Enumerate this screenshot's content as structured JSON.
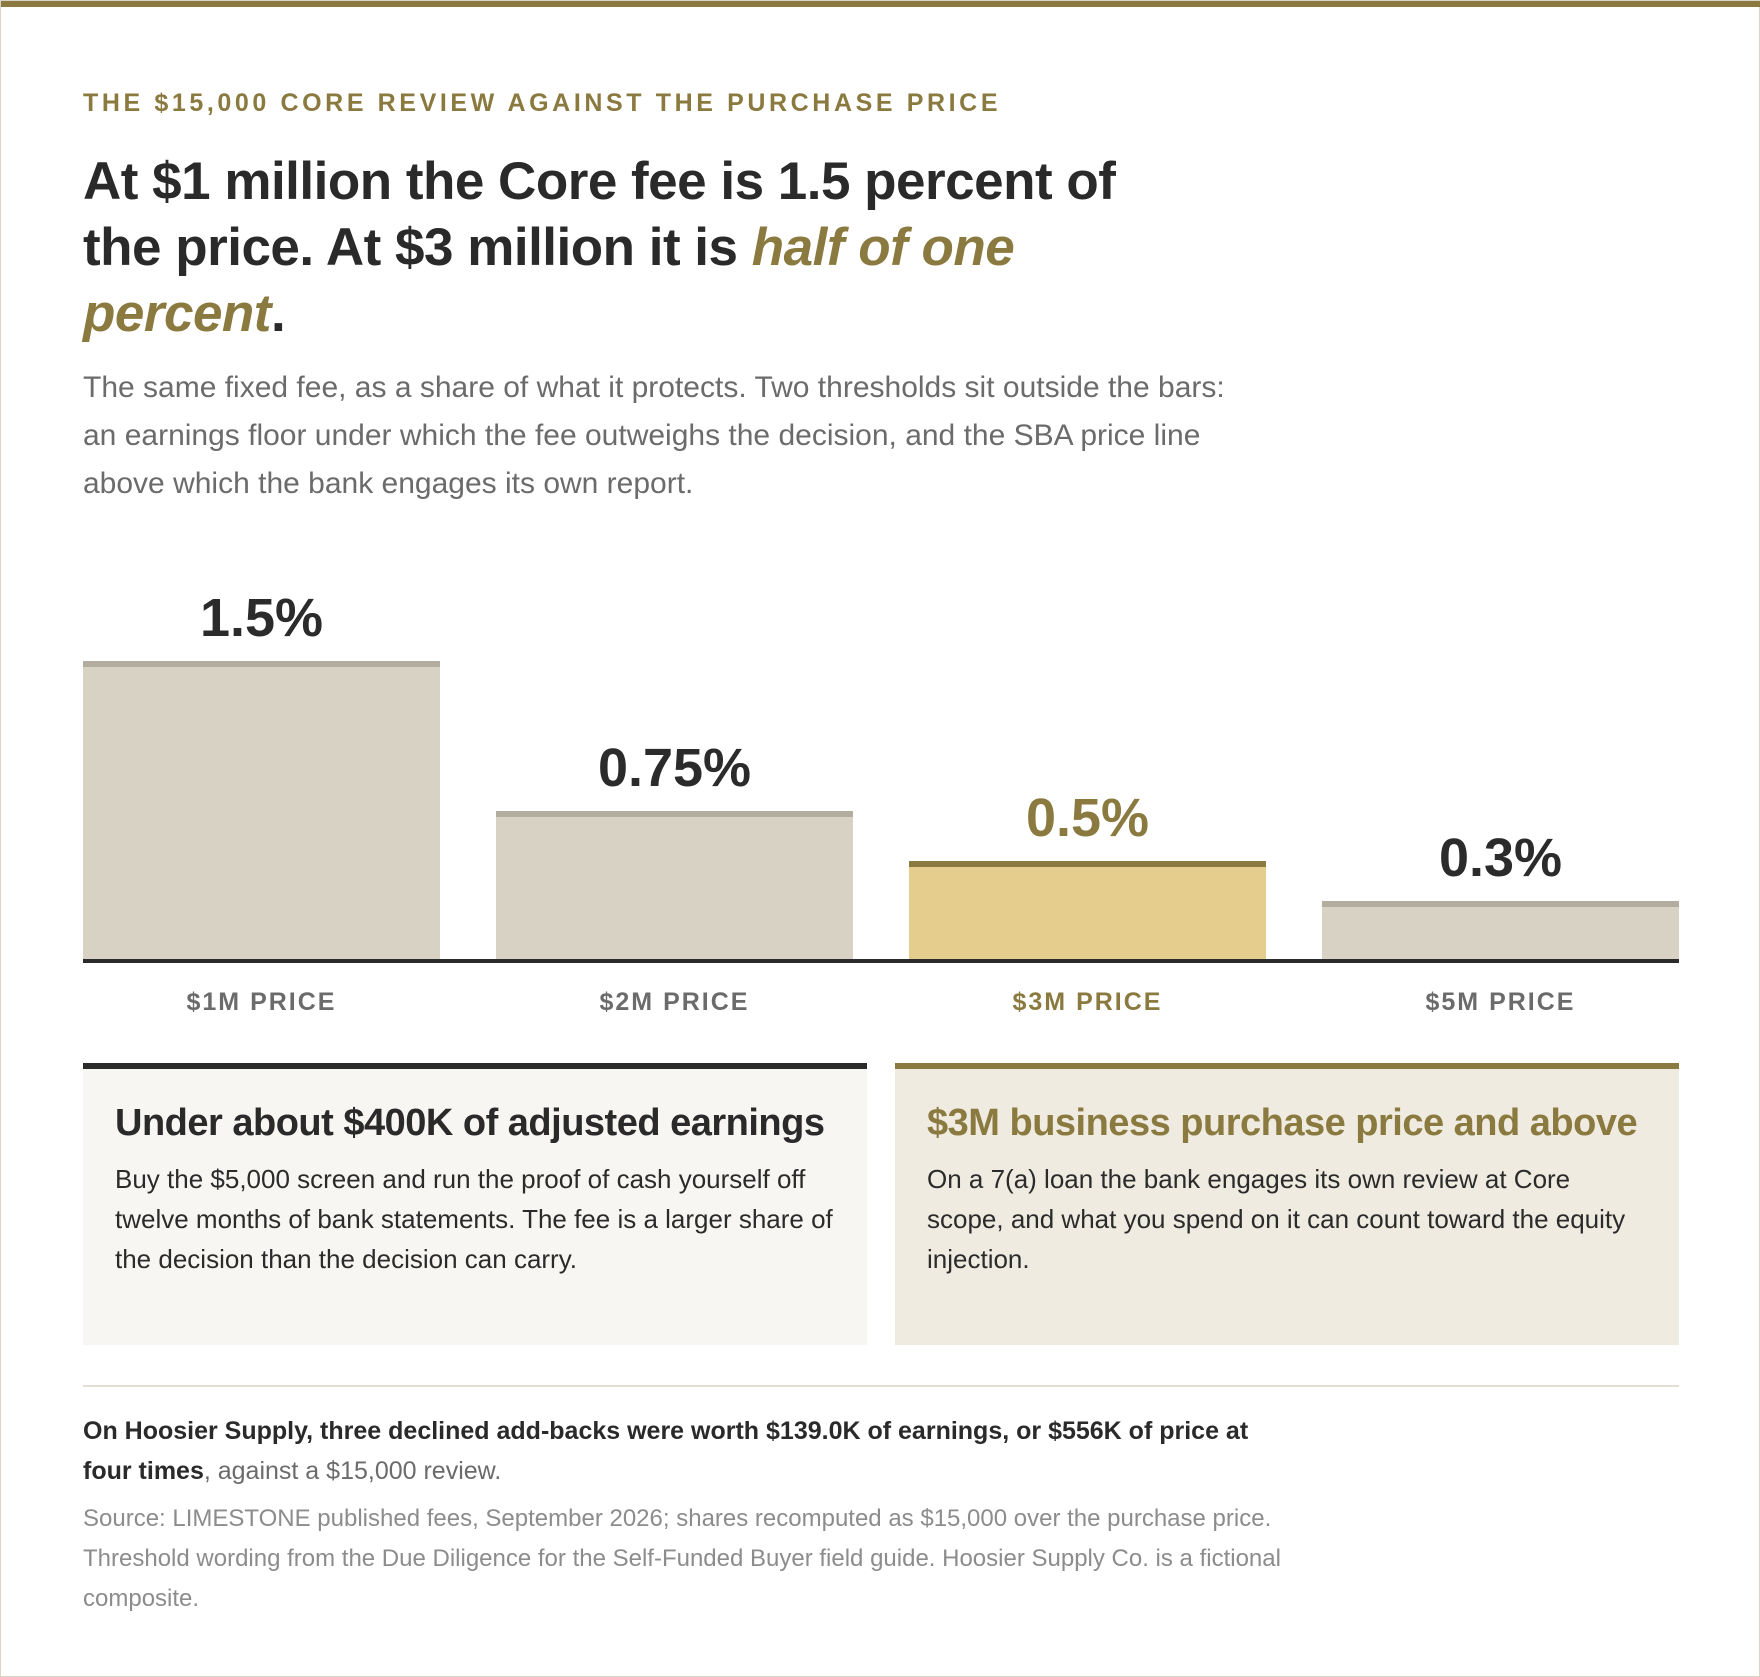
{
  "eyebrow": "THE $15,000 CORE REVIEW AGAINST THE PURCHASE PRICE",
  "headline": {
    "text_before": "At $1 million the Core fee is 1.5 percent of the price. At $3 million it is ",
    "highlight": "half of one percent",
    "text_after": "."
  },
  "dek": "The same fixed fee, as a share of what it protects. Two thresholds sit outside the bars: an earnings floor under which the fee outweighs the decision, and the SBA price line above which the bank engages its own report.",
  "chart_data": {
    "type": "bar",
    "categories": [
      "$1M PRICE",
      "$2M PRICE",
      "$3M PRICE",
      "$5M PRICE"
    ],
    "values": [
      1.5,
      0.75,
      0.5,
      0.3
    ],
    "value_labels": [
      "1.5%",
      "0.75%",
      "0.5%",
      "0.3%"
    ],
    "highlight_index": 2,
    "ylim": [
      0,
      1.5
    ],
    "grid": false,
    "legend": "none",
    "colors": {
      "bar": "#d8d2c4",
      "bar_cap": "#b2ad9f",
      "highlight_bar": "#e5cd8d",
      "highlight_cap": "#8a7a3f",
      "baseline": "#2b2b2b",
      "label": "#2b2b2b",
      "highlight_label": "#8a7a3f",
      "category": "#6b6b6b"
    }
  },
  "thresholds": [
    {
      "title": "Under about $400K of adjusted earnings",
      "body": "Buy the $5,000 screen and run the proof of cash yourself off twelve months of bank statements. The fee is a larger share of the decision than the decision can carry."
    },
    {
      "title": "$3M business purchase price and above",
      "body": "On a 7(a) loan the bank engages its own review at Core scope, and what you spend on it can count toward the equity injection."
    }
  ],
  "takeaway": {
    "bold": "On Hoosier Supply, three declined add-backs were worth $139.0K of earnings, or $556K of price at four times",
    "rest": ", against a $15,000 review."
  },
  "source": "Source: LIMESTONE published fees, September 2026; shares recomputed as $15,000 over the purchase price. Threshold wording from the Due Diligence for the Self-Funded Buyer field guide. Hoosier Supply Co. is a fictional composite."
}
